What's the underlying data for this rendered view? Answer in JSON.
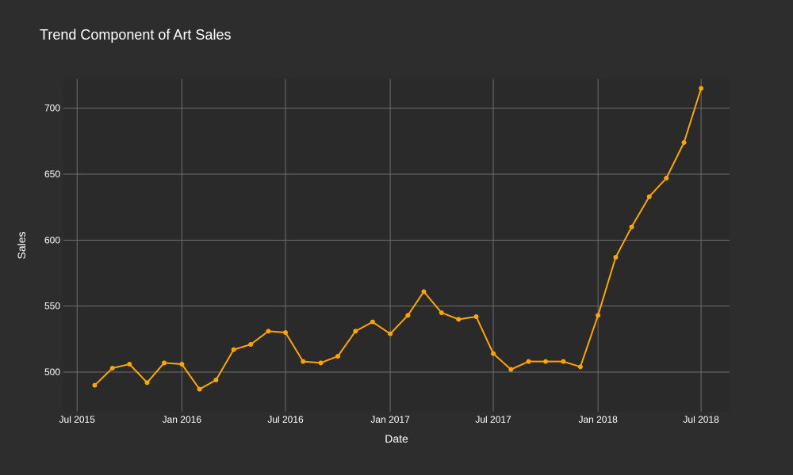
{
  "chart_data": {
    "type": "line",
    "title": "Trend Component of Art Sales",
    "xlabel": "Date",
    "ylabel": "Sales",
    "x_ticks": [
      {
        "date": "2015-07-01",
        "label": "Jul 2015"
      },
      {
        "date": "2016-01-01",
        "label": "Jan 2016"
      },
      {
        "date": "2016-07-01",
        "label": "Jul 2016"
      },
      {
        "date": "2017-01-01",
        "label": "Jan 2017"
      },
      {
        "date": "2017-07-01",
        "label": "Jul 2017"
      },
      {
        "date": "2018-01-01",
        "label": "Jan 2018"
      },
      {
        "date": "2018-07-01",
        "label": "Jul 2018"
      }
    ],
    "y_ticks": [
      500,
      550,
      600,
      650,
      700
    ],
    "xlim": [
      "2015-06-07",
      "2018-08-20"
    ],
    "ylim": [
      470,
      722
    ],
    "grid": true,
    "colors": {
      "line": "#ffa500",
      "marker": "#ffa500",
      "page_bg": "#2d2d2d",
      "plot_bg": "#2a2a2a",
      "grid": "#6e6e6e"
    },
    "series": [
      {
        "x": [
          "2015-08-01",
          "2015-09-01",
          "2015-10-01",
          "2015-11-01",
          "2015-12-01",
          "2016-01-01",
          "2016-02-01",
          "2016-03-01",
          "2016-04-01",
          "2016-05-01",
          "2016-06-01",
          "2016-07-01",
          "2016-08-01",
          "2016-09-01",
          "2016-10-01",
          "2016-11-01",
          "2016-12-01",
          "2017-01-01",
          "2017-02-01",
          "2017-03-01",
          "2017-04-01",
          "2017-05-01",
          "2017-06-01",
          "2017-07-01",
          "2017-08-01",
          "2017-09-01",
          "2017-10-01",
          "2017-11-01",
          "2017-12-01",
          "2018-01-01",
          "2018-02-01",
          "2018-03-01",
          "2018-04-01",
          "2018-05-01",
          "2018-06-01",
          "2018-07-01"
        ],
        "y": [
          490,
          503,
          506,
          492,
          507,
          506,
          487,
          494,
          517,
          521,
          531,
          530,
          508,
          507,
          512,
          531,
          538,
          529,
          543,
          561,
          545,
          540,
          542,
          514,
          502,
          508,
          508,
          508,
          504,
          543,
          587,
          610,
          633,
          647,
          674,
          715
        ]
      }
    ]
  }
}
